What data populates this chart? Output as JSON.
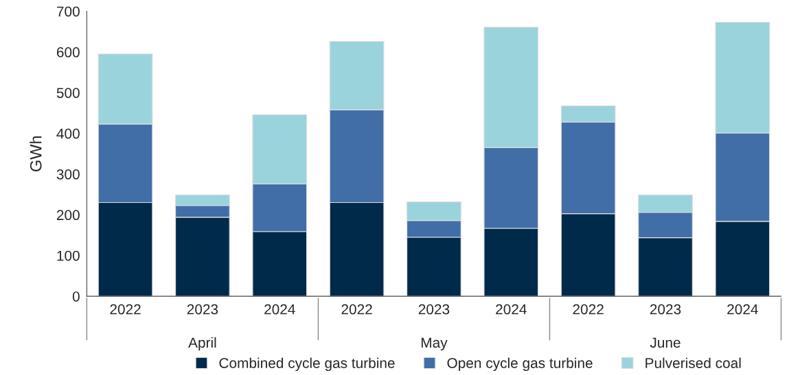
{
  "chart_data": {
    "type": "bar",
    "stacked": true,
    "ylabel": "GWh",
    "categories": [
      "2022",
      "2023",
      "2024",
      "2022",
      "2023",
      "2024",
      "2022",
      "2023",
      "2024"
    ],
    "series": [
      {
        "name": "Combined cycle gas turbine",
        "color": "#002a4a",
        "values": [
          230,
          194,
          159,
          230,
          145,
          167,
          203,
          144,
          184
        ]
      },
      {
        "name": "Open cycle gas turbine",
        "color": "#426ea8",
        "values": [
          193,
          29,
          117,
          228,
          41,
          198,
          225,
          62,
          217
        ]
      },
      {
        "name": "Pulverised coal",
        "color": "#9bd3dd",
        "values": [
          172,
          26,
          170,
          168,
          46,
          296,
          40,
          43,
          272
        ]
      }
    ],
    "annotations": [
      "April",
      "May",
      "June"
    ],
    "ylim": [
      0,
      700
    ],
    "yticks": [
      0,
      100,
      200,
      300,
      400,
      500,
      600,
      700
    ],
    "grid": false,
    "legend": "bottom"
  }
}
